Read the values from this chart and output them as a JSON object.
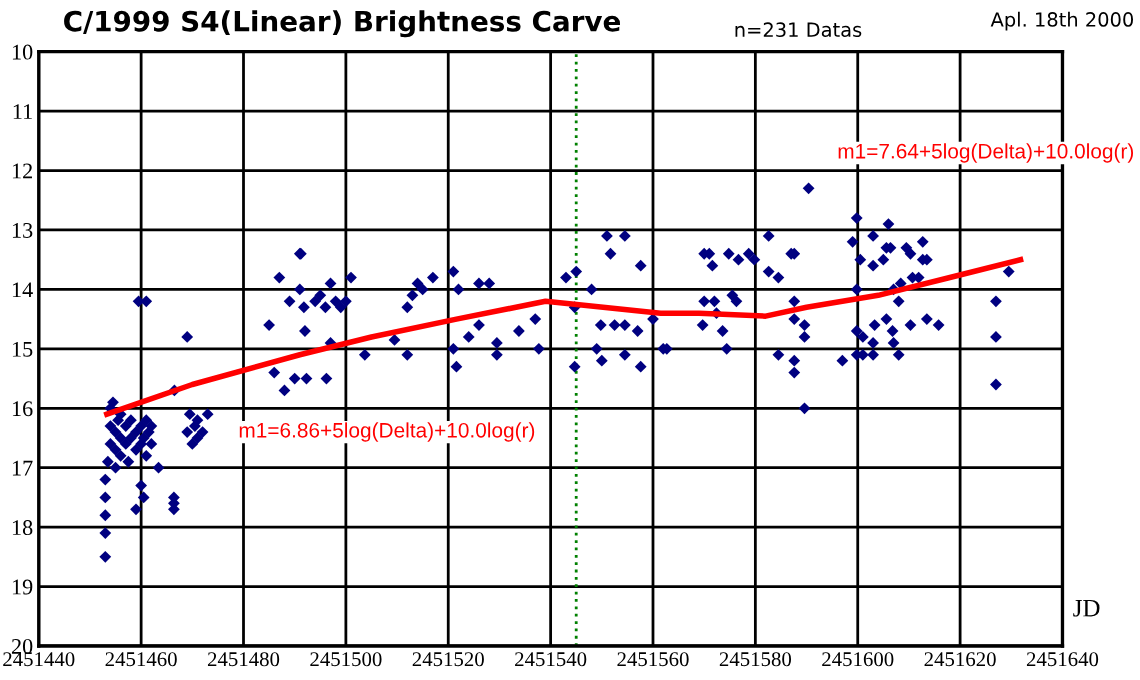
{
  "chart_data": {
    "type": "scatter",
    "title": "C/1999 S4(Linear) Brightness Carve",
    "xlabel": "JD",
    "xlim": [
      2451440,
      2451640
    ],
    "xticks": [
      2451440,
      2451460,
      2451480,
      2451500,
      2451520,
      2451540,
      2451560,
      2451580,
      2451600,
      2451620,
      2451640
    ],
    "ylim": [
      20,
      10
    ],
    "yticks": [
      10,
      11,
      12,
      13,
      14,
      15,
      16,
      17,
      18,
      19,
      20
    ],
    "grid": true,
    "marker": "diamond",
    "ref_lines": [
      {
        "axis": "x",
        "value": 2451545,
        "color": "#008000",
        "line_style": "dotted"
      }
    ],
    "annotations": [
      "m1=6.86+5log(Delta)+10.0log(r)",
      "m1=7.64+5log(Delta)+10.0log(r)",
      "n=231 Datas",
      "Apl. 18th 2000"
    ],
    "series": [
      {
        "color": "#000080",
        "x": [
          2451453,
          2451453,
          2451453,
          2451453,
          2451453,
          2451453.5,
          2451454,
          2451454,
          2451454,
          2451454.5,
          2451455,
          2451455,
          2451455,
          2451455.5,
          2451456,
          2451456,
          2451456,
          2451457,
          2451457,
          2451457.5,
          2451458,
          2451458,
          2451459,
          2451459,
          2451459,
          2451459.5,
          2451460,
          2451460,
          2451460,
          2451460.5,
          2451460.5,
          2451461,
          2451461,
          2451461,
          2451461.5,
          2451462,
          2451462,
          2451463.4,
          2451466.4,
          2451466.4,
          2451466.4,
          2451466.5,
          2451469,
          2451469,
          2451469.5,
          2451470,
          2451470.5,
          2451471,
          2451471,
          2451472,
          2451473,
          2451485,
          2451486,
          2451487,
          2451488,
          2451489,
          2451490,
          2451491,
          2451491,
          2451491.2,
          2451491.8,
          2451492,
          2451492.3,
          2451494,
          2451495,
          2451496,
          2451496.2,
          2451497,
          2451497,
          2451498,
          2451499,
          2451500,
          2451501,
          2451503.7,
          2451509.5,
          2451512,
          2451512,
          2451513,
          2451514,
          2451515,
          2451517,
          2451521,
          2451521,
          2451521.6,
          2451522,
          2451524,
          2451526,
          2451526,
          2451528,
          2451529.5,
          2451529.5,
          2451533.8,
          2451537,
          2451537.7,
          2451543,
          2451544.7,
          2451544.7,
          2451545,
          2451548,
          2451549,
          2451549.8,
          2451550,
          2451551,
          2451551.7,
          2451552.5,
          2451554.5,
          2451554.5,
          2451554.5,
          2451557,
          2451557.6,
          2451557.6,
          2451560,
          2451562,
          2451562.7,
          2451569.7,
          2451570,
          2451570,
          2451571,
          2451571.6,
          2451572,
          2451572.4,
          2451573.6,
          2451574.4,
          2451574.8,
          2451575.5,
          2451576.3,
          2451576.7,
          2451578.7,
          2451579.8,
          2451582.6,
          2451582.6,
          2451584.5,
          2451584.5,
          2451587,
          2451587.6,
          2451587.6,
          2451587.6,
          2451587.6,
          2451587.6,
          2451589.6,
          2451589.6,
          2451589.6,
          2451590.4,
          2451597,
          2451599,
          2451599.8,
          2451599.8,
          2451599.8,
          2451599.8,
          2451600.5,
          2451601,
          2451601,
          2451603,
          2451603,
          2451603,
          2451603,
          2451603.3,
          2451605,
          2451605.6,
          2451605.6,
          2451606,
          2451606.4,
          2451606.8,
          2451607,
          2451607,
          2451608,
          2451608,
          2451608.4,
          2451609.5,
          2451610.3,
          2451610.3,
          2451610.7,
          2451611.9,
          2451612.7,
          2451612.7,
          2451613.5,
          2451613.5,
          2451615.8,
          2451627,
          2451627,
          2451627,
          2451629.5
        ],
        "values": [
          18.5,
          18.1,
          17.8,
          17.5,
          17.2,
          16.9,
          16.6,
          16.3,
          16.0,
          15.9,
          16.7,
          17.0,
          16.4,
          16.2,
          16.5,
          16.8,
          16.1,
          16.3,
          16.6,
          16.9,
          16.5,
          16.2,
          17.7,
          16.4,
          16.7,
          14.2,
          16.6,
          16.3,
          17.3,
          16.5,
          17.5,
          14.2,
          16.2,
          16.8,
          16.4,
          16.6,
          16.3,
          17.0,
          17.5,
          17.6,
          17.7,
          15.7,
          14.8,
          16.4,
          16.1,
          16.6,
          16.3,
          16.2,
          16.5,
          16.4,
          16.1,
          14.6,
          15.4,
          13.8,
          15.7,
          14.2,
          15.5,
          13.4,
          14.0,
          13.4,
          14.3,
          14.7,
          15.5,
          14.2,
          14.1,
          14.3,
          15.5,
          13.9,
          14.9,
          14.2,
          14.3,
          14.2,
          13.8,
          15.1,
          14.85,
          15.1,
          14.3,
          14.1,
          13.9,
          14.0,
          13.8,
          13.7,
          15.0,
          15.3,
          14.0,
          14.8,
          14.6,
          13.9,
          13.9,
          14.9,
          15.1,
          14.7,
          14.5,
          15.0,
          13.8,
          14.3,
          15.3,
          13.7,
          14.0,
          15.0,
          14.6,
          15.2,
          13.1,
          13.4,
          14.6,
          13.1,
          14.6,
          15.1,
          14.7,
          13.6,
          15.3,
          14.5,
          15.0,
          15.0,
          14.6,
          13.4,
          14.2,
          13.4,
          13.6,
          14.2,
          14.4,
          14.7,
          15.0,
          13.4,
          14.1,
          14.2,
          13.5,
          13.4,
          13.5,
          13.1,
          13.7,
          13.8,
          15.1,
          13.4,
          13.4,
          14.2,
          14.5,
          15.2,
          15.4,
          14.6,
          14.8,
          16.0,
          12.3,
          15.2,
          13.2,
          12.8,
          14.0,
          14.7,
          15.1,
          13.5,
          14.8,
          15.1,
          13.1,
          13.6,
          14.9,
          15.1,
          14.6,
          13.5,
          13.3,
          14.5,
          12.9,
          13.3,
          14.7,
          14.0,
          14.9,
          15.1,
          14.2,
          13.9,
          13.3,
          13.4,
          14.6,
          13.8,
          13.8,
          13.2,
          13.5,
          13.5,
          14.5,
          14.6,
          14.2,
          14.8,
          15.6,
          13.7
        ]
      },
      {
        "type": "line",
        "color": "#ff0000",
        "marker": "none",
        "x": [
          2451453.3,
          2451470,
          2451491,
          2451505,
          2451521.6,
          2451539,
          2451561.5,
          2451569,
          2451582,
          2451590,
          2451604,
          2451618,
          2451631.8
        ],
        "values": [
          16.1,
          15.6,
          15.1,
          14.8,
          14.5,
          14.2,
          14.4,
          14.4,
          14.45,
          14.3,
          14.1,
          13.8,
          13.5
        ]
      }
    ]
  }
}
